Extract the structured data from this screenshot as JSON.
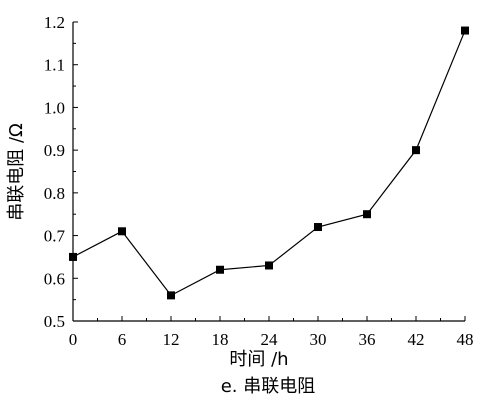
{
  "chart_data": {
    "type": "line",
    "xlabel": "时间 /h",
    "ylabel": "串联电阻 /Ω",
    "caption": "e. 串联电阻",
    "x": [
      0,
      6,
      12,
      18,
      24,
      30,
      36,
      42,
      48
    ],
    "series": [
      {
        "values": [
          0.65,
          0.71,
          0.56,
          0.62,
          0.63,
          0.72,
          0.75,
          0.9,
          1.18
        ]
      }
    ],
    "xlim": [
      0,
      48
    ],
    "ylim": [
      0.5,
      1.2
    ],
    "xticks": [
      "0",
      "6",
      "12",
      "18",
      "24",
      "30",
      "36",
      "42",
      "48"
    ],
    "yticks": [
      "0.5",
      "0.6",
      "0.7",
      "0.8",
      "0.9",
      "1.0",
      "1.1",
      "1.2"
    ],
    "grid": false,
    "marker": "square",
    "color": "#000000"
  }
}
